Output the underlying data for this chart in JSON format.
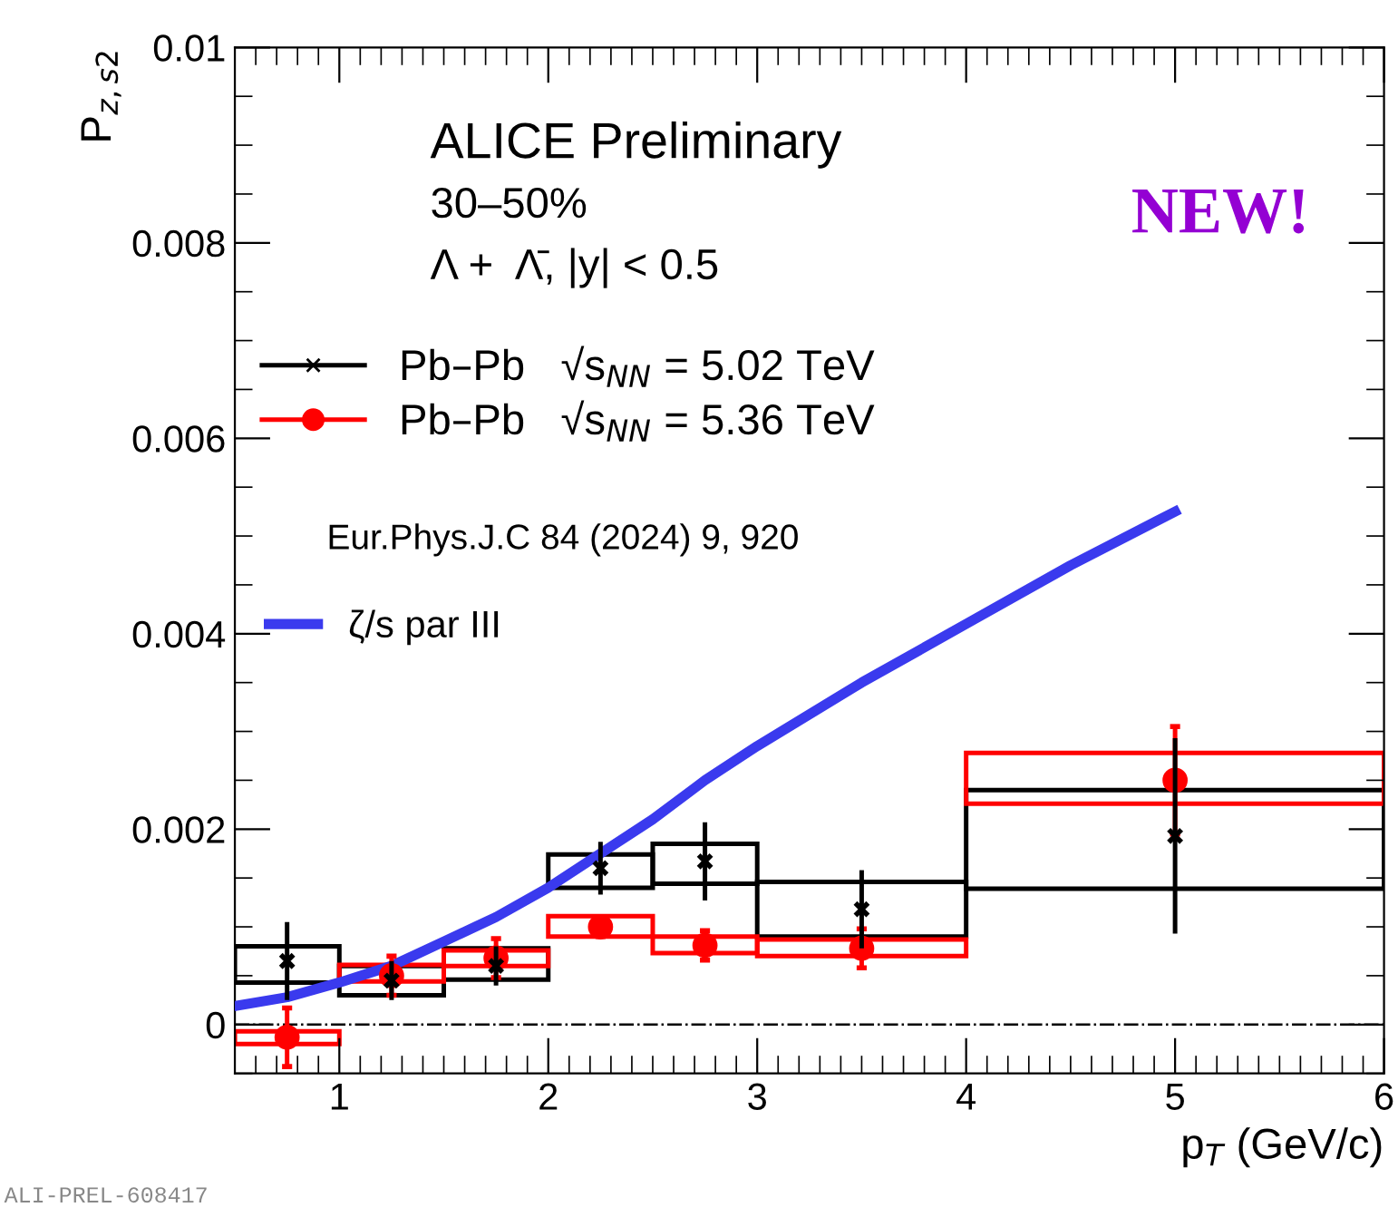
{
  "chart_data": {
    "type": "scatter",
    "xlabel": "p$_{T}$ (GeV/c)",
    "ylabel": "P$_{z,s2}$",
    "xlim": [
      0.5,
      6
    ],
    "ylim": [
      -0.0005,
      0.01
    ],
    "xticks": [
      1,
      2,
      3,
      4,
      5,
      6
    ],
    "yticks": [
      0,
      0.002,
      0.004,
      0.006,
      0.008,
      0.01
    ],
    "grid": false,
    "legend": "top left",
    "series": [
      {
        "type": "histogram",
        "color": "#000000",
        "bins": [
          0.5,
          1,
          1.5,
          2,
          2.5,
          3,
          4,
          6
        ],
        "base": [
          0.00043,
          0.0003,
          0.00046,
          0.0014,
          0.00144,
          0.0009,
          0.00139
        ],
        "values": [
          0.00037,
          0.0003,
          0.00032,
          0.00034,
          0.00041,
          0.00056,
          0.00101
        ]
      },
      {
        "type": "histogram",
        "color": "#ff0000",
        "bins": [
          0.5,
          1,
          1.5,
          2,
          2.5,
          3,
          4,
          6
        ],
        "base": [
          -0.0002,
          0.00044,
          0.0006,
          0.0009,
          0.00073,
          0.0007,
          0.00226
        ],
        "values": [
          0.00013,
          0.00017,
          0.00016,
          0.00021,
          0.00017,
          0.00017,
          0.00052
        ]
      },
      {
        "name": "Pb–Pb   √s$_{NN}$ = 5.02 TeV",
        "color": "#000000",
        "marker": "cross",
        "x": [
          0.75,
          1.25,
          1.75,
          2.25,
          2.75,
          3.5,
          5
        ],
        "values": [
          0.00065,
          0.00045,
          0.0006,
          0.0016,
          0.00167,
          0.00118,
          0.00193
        ],
        "errors": [
          0.0004,
          0.0002,
          0.0002,
          0.00027,
          0.0004,
          0.0004,
          0.001
        ]
      },
      {
        "name": "Pb–Pb   √s$_{NN}$ = 5.36 TeV",
        "color": "#ff0000",
        "marker": "circle",
        "x": [
          0.75,
          1.25,
          1.75,
          2.25,
          2.75,
          3.5,
          5
        ],
        "values": [
          -0.00013,
          0.0005,
          0.00068,
          0.001,
          0.00081,
          0.00078,
          0.0025
        ],
        "errors": [
          0.0003,
          0.0002,
          0.0002,
          0.0001,
          0.00015,
          0.0002,
          0.00055
        ]
      },
      {
        "type": "line",
        "name": "ζ/s par III",
        "color": "#3a3aee",
        "x": [
          0.5,
          0.75,
          1,
          1.25,
          1.5,
          1.75,
          2,
          2.25,
          2.5,
          2.75,
          3,
          3.5,
          4,
          4.5,
          5
        ],
        "values": [
          0.00019,
          0.00028,
          0.00043,
          0.0006,
          0.00085,
          0.0011,
          0.0014,
          0.00175,
          0.0021,
          0.0025,
          0.00285,
          0.0035,
          0.0041,
          0.0047,
          0.00525
        ]
      }
    ],
    "ref_lines": [
      {
        "axis": "y",
        "value": 0,
        "color": "#000000",
        "line_style": "dashdot"
      }
    ],
    "annotations": [
      "ALICE Preliminary",
      "30–50%",
      "Λ +  Λ̄, |y| < 0.5",
      "Eur.Phys.J.C 84 (2024) 9, 920",
      "NEW!",
      "ALI-PREL-608417"
    ]
  }
}
